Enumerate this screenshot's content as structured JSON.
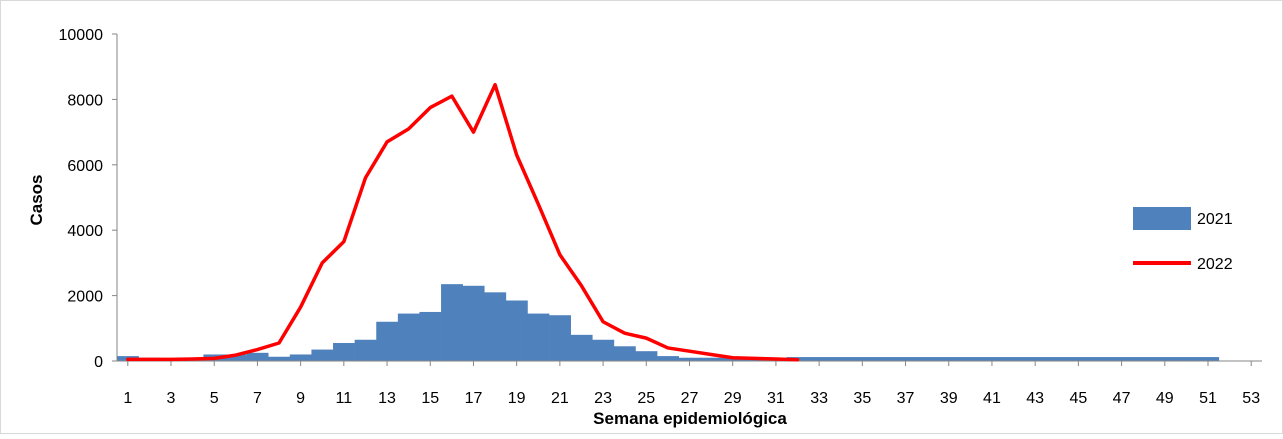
{
  "chart_data": {
    "type": "bar",
    "xlabel": "Semana epidemiológica",
    "ylabel": "Casos",
    "ylim": [
      0,
      10000
    ],
    "yticks": [
      "0",
      "2000",
      "4000",
      "6000",
      "8000",
      "10000"
    ],
    "xticks": [
      "1",
      "3",
      "5",
      "7",
      "9",
      "11",
      "13",
      "15",
      "17",
      "19",
      "21",
      "23",
      "25",
      "27",
      "29",
      "31",
      "33",
      "35",
      "37",
      "39",
      "41",
      "43",
      "45",
      "47",
      "49",
      "51",
      "53"
    ],
    "grid": false,
    "legend_position": "right",
    "x": [
      1,
      2,
      3,
      4,
      5,
      6,
      7,
      8,
      9,
      10,
      11,
      12,
      13,
      14,
      15,
      16,
      17,
      18,
      19,
      20,
      21,
      22,
      23,
      24,
      25,
      26,
      27,
      28,
      29,
      30,
      31,
      32,
      33,
      34,
      35,
      36,
      37,
      38,
      39,
      40,
      41,
      42,
      43,
      44,
      45,
      46,
      47,
      48,
      49,
      50,
      51,
      52,
      53
    ],
    "series": [
      {
        "name": "2021",
        "type": "bar",
        "color": "#4f81bd",
        "values": [
          150,
          100,
          80,
          80,
          200,
          200,
          250,
          130,
          200,
          350,
          550,
          650,
          1200,
          1450,
          1500,
          2350,
          2300,
          2100,
          1850,
          1450,
          1400,
          800,
          650,
          450,
          300,
          150,
          100,
          100,
          100,
          100,
          100,
          120,
          120,
          120,
          120,
          120,
          120,
          120,
          120,
          120,
          120,
          120,
          120,
          120,
          120,
          120,
          120,
          120,
          120,
          120,
          120,
          null,
          null
        ]
      },
      {
        "name": "2022",
        "type": "line",
        "color": "#ff0000",
        "values": [
          50,
          50,
          50,
          60,
          80,
          180,
          350,
          550,
          1650,
          3000,
          3650,
          5600,
          6700,
          7100,
          7750,
          8100,
          7000,
          8450,
          6300,
          4800,
          3250,
          2300,
          1200,
          850,
          700,
          400,
          300,
          200,
          100,
          80,
          60,
          40,
          null,
          null,
          null,
          null,
          null,
          null,
          null,
          null,
          null,
          null,
          null,
          null,
          null,
          null,
          null,
          null,
          null,
          null,
          null,
          null,
          null
        ]
      }
    ]
  }
}
